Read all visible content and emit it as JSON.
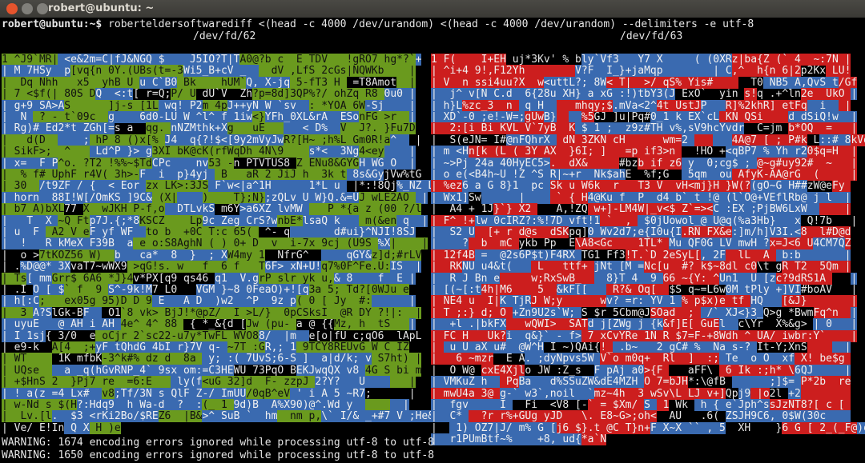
{
  "window": {
    "title": "robert@ubuntu: ~"
  },
  "terminal": {
    "prompt": "robert@ubuntu:~$",
    "command": "roberteldersoftwarediff <(head -c 4000 /dev/urandom) <(head -c 4000 /dev/urandom) --delimiters -e utf-8",
    "left_header": "/dev/fd/62",
    "right_header": "/dev/fd/63",
    "left_rows": [
      "1 ^J9`MR| <e&2m=C|fJ&NGQ $    J5IO?T|TA0@?b c  E TDV   !gRO7 hg*?`+",
      "| M 7HSy  p[vq{n 0Y.(UBs(t=-3Wi5_B+cV _    dV ,LfS 2cGs|NQWKb    |",
      "|  Dq Nhh   x5  yhB U u C`B0 Bk    hUM`Q, X-jq 5-fT3 H  =T8Amot  |",
      "| 7 <$f(| 80S DQ  <:t[ r=Q;P/ U dU`V  Zh?p=8d]3QP%?/ ohZq R8 0u0 |",
      "| g+9 SA>AS      ]j-s [1L wq! P2m 4pJ++yN W `sv  : *YOA 6W-Sj    |",
      "|  N  ? - t`09c  g    6d0-LU W ^l^ f 1iw<}YFh_0XL&rA  ESonFG >r  |",
      "| Rg)# Ed2*t ZGh[=s a  qg. nNZMthk+Xg   uE      < D%  V  J?. }Fu7D",
      "|   d(D      ; hP 8 ()x[% J4  q{?!$<[9y2mVyJwR?[H~ ;h%L Gm0R!a^   |",
      "| SikF>;  ^    Ld^P }> g3XI bK@cK(rfWqDh 4N\\9    s*<  3Ng4<ey    |",
      "| x=  F P^o. ?T2 !%%~$TdCPc    nv53 -n PTVTUS8 Z ENu8&GYGH WG O  |",
      "|  % f# UphF r4V( 3h>-F  i  p}4yj  B   aR 2 JiJ h  3k t 8s&GyjVw%tG",
      "| 30  /t9ZF / {  < Eor zx LK>:3JS F`w<|a^1H      1*L u  |*:!8Qj%_NZ L",
      "| horn  88I!W[/OmKS ]9C& (X|    )    T};N};zQLv U W}Q.&=UJ wLE2AO  |",
      "| b7 A)bXL77 X  wJKH P-f,o  DTLvkS m6Y>a6XZ lvMW    P *{a z (00 ?/l",
      "|   T  X ~Q Ftp7J.{;*8KSCZ    Lp9c Zeg CrS?wnbE*lsaQ k    m(&en q  |",
      "| u  F  A2 V eF yf WF  to b  +0C T:c 65(  ^- q       d#ui}^NJI!8SJ",
      "|  !   R kMeX F39B  a e o:S8AghN ( ) 0+ D  v  i-7x 9cj (U9S %X|    |",
      "|  o >7tKOZ56 W)  b   ca*  8  }  ; XW4my 1  NfrG^      qGY&z]d;#rLV",
      "| .%D@@* 3XvaT7~wWX9 >qG!s. w   f  6 f   T6F> xN+U!q7%0F^Fe.U:IS  |",
      "| Ts[ mmGrr$ 6A6 *J}4v*PX[q9 qs46 q1  V.grP slr yk u,& 8    f  E |",
      "| .I O [ $` f  9 S^-9k!M7 L0   VGM }~8 0FeaO)+![q3a 5; Td?[0WJu e",
      "| h[:C;   ex05g 95)D D 9 E   A D  )w2  ^P  9z p( 0 [ Jy  #:      |",
      "|  3 A?SlGk-BF   O1`8 vk> BjJ!*@pZ/  I >L/}  0pCSksI  @R DY ?!|:  |",
      "| uyuE   @ AH i AH 4e^ 4^ 88  { *_&{d [Jw (pu- a @ {{Mz, h  tS   |",
      "| I 1sj{ 3/0  e oCjr 2`sc22-u7y*TwFL WVO88/  |m  e[o|fU c;qO6  lApL",
      "| e9-k  A[4  ;+yF tQhdG 4bI r}7V q- ~7T :GR,; 1 9TCY8REUvG W C IZ",
      "| WT     1K mfbK-3^k#% dz d  8a  y; :( 7UvS;6-S ]  a|d/k; v S7ht) |",
      "| UQse    a _q(hGvRNP_4` 9sx om:=C3HEWU 73PqO BEKJwqQX v8 4G S bi m",
      "| +$HnS 2  }Pj7 re  =6:E    ly(f<uG 32]d  F- zzpJ 2?Y?   U       |",
      "| ! a(z =4 Lx#  v8;Tf/3N s QlF Z-/ ImUU/0qB^eV ' i A 5 ~R7;      |",
      "| w-Nd s $(H?:Hdq9  h Wa-d  ?  :(_ 1 9d)B  A%X90)@^.Wd y        |",
      "|  Lv.[l.  $3 <rKi2Bo/$REZ6  |B&>^ SuB `  hm  nm p,\\` I/& _+#7 V ;He&",
      "| Ve/ E!In Q X H )e"
    ],
    "right_rows": [
      "1 F(    I+EH uj*3Kv' % bly`Vf3   Y7 X     ( (0XRz|ba{Z (` 4  ~:7N |",
      "| ^i+4 9!,F12Yh        V?F  I_}+jaMqp        | C,^  h{n 6|2p2Kx LU!",
      "| V  n ssi4uu?X  w<uttL?; 8W< T|  >/ qS% Yis#      T0 NB5 A,QvS t/Gf",
      "|  j^ v[N C.d  6{28u XH} a xG :!)tbY3(J ExO`  yin s!q .+^ln2e  UkO |",
      "| h}L%zc_3  n  q H     mhqy;$.mVa<2^4t UstJP   R]%2khR] etFq  i   |",
      "| XD`-0 ;e!-W=;gUwB}    %5GJ ]u|Pq#0_1 k EX`cL KN QSi    d dSiQ!w  |",
      "|  2:[i Bi KVL V`7yB  K $ 1 ;  z9z#TH v%,sV9hcYvdr  C=jm b*OQ  =   |",
      "|  S(eJN= I#@nFQhrX  dN 3ZKN cH      wm=2       4A@7 [ ; P#k L::# 8kVd",
      "| m <Hn[k (L ( 3Y AX  }6I; ]   =p if3>n   !HO +<qBP7 % Yh r20$q=H  |",
      "| ~>Pj 24a 40HyEC5>.  dX&     #bzb if z6 y  0;cg$ ; @~g#uy92#  ~   |",
      "| o e(<B4h~U !Z ^S R|~+r  Nk$ahE  %f;G   5qm  ou AfyK-AA@rG  (     |",
      "| %ez6 a G 8}1  pc Sk u W6k  r   T3 V  vH<mj}H }W(?(gO~G H##zW@eFy ",
      "| Wx1]Sw      |     ` { H4@Ku f  P  d4 b` t !@ (l`O@+VEflRb@ j l  |",
      "|  A4 + 1J}`} X2    A,!ZQ w+]-LM4W|_v<$ Z`=><C :EX ;PjBW6LxW      |",
      "| F^ !+lw 0cIRZ?:%!7D vft!1 `  ,  $0jUowol_@ U@q(%a3Hb}   x Q!7b   |",
      "|  S2 U  [+ r d@s  dSKpq]0 Wv2d7;e{I0u{I.RN FX&e:]m/h]V3I.<8  l#D@d",
      "|    ?  b  mC ykb Pp  E\\A8<Gc    1TL* Mu QF0G LV mwH ?x=J<6 U4CM7QZ",
      "| 12f4B =  @2s6P$t)F4RX TG1 Ff3!T.`D 2eSyL[, 2F  lL  A  b:b       |",
      "|  RKNU u4&t(    L   ttf+ jNt [M =Nc[u  #? k$~8dl c0\\t gR T2  5Qm |",
      "|  R J Bn e     w;RxSwB_    8}T 4  9 66 ~{Y: ^Un1  U [zc?9dRS1A    |",
      "| [(~[:t4h|M6    5  &kF[[    R?& Oq[  $S q~=L6w0M tPly +]VI#boAV   |",
      "| NE4 u  I|K TjRJ W;y      wv? =r: YV 1 % p$x)e tf HQ   [&J}       |",
      "| T ;:} d; O +Zn9U2s`W; S $r 5Cbm@JSOad  ;  /` XJ<}3_Q>g *BwmFq^n  |",
      "|  +l .|bkFX   wQWI>  SATd j[ZWg j {k&f]E[ GuEl  c\\Yr  X%&g> | 0   |",
      "| FC H   Uk?i  q&}` - f> 7 xCvYRe 1N R $7=F-+8Wdh ^ UA/ iwbr:Y`    |",
      "|  u U aX u#  @W^H I ~)QAi{!_ .b~   2 gC# %  Na s-? It-Y;XnS      |",
      "|   6 ~mzr  E A. ;dyNpvs5W V`o m0q+  Rl  ]  :; Te  o O  xf X! be$g ",
      "|  O W@ cxE4Xjlo JW :Z_s  F pAj a0>{F    aFF\\  6 Ik :;h* \\6QJ     |",
      "| VMKuZ h   PqBa   d%SSuZW&dE4MZH O 7=bJH*:\\@fB       ;]$= P*2b  re",
      "| mwU4a 3@ g-` w3`,noil  `mz~4h  3 wSv\\L LJ v+]Qpj9 |o2l +2        ",
      "|  fgv     I   Fi  <V8 [-` = $Xm/ S  1 Wk  h { e`Jph^ssJzNT8?[ c [ ",
      "|  C*   ?r r%+GUg yJD   \\. E8~G>;oh<  AU   .6( ZSJH9C6, 0$W(30c    ",
      "|   1) OZ7|J/ m% G [j6 $}.t @C T}n+F X~X `` , 5  XH    }6 G [ 2_(_F@)o",
      "|  r1PUmBtf~%    +8, ud{*a`N"
    ],
    "warnings": [
      "WARNING: 1674 encoding errors ignored while processing utf-8 to utf-8",
      "WARNING: 1650 encoding errors ignored while processing utf-8 to utf-8"
    ]
  }
}
